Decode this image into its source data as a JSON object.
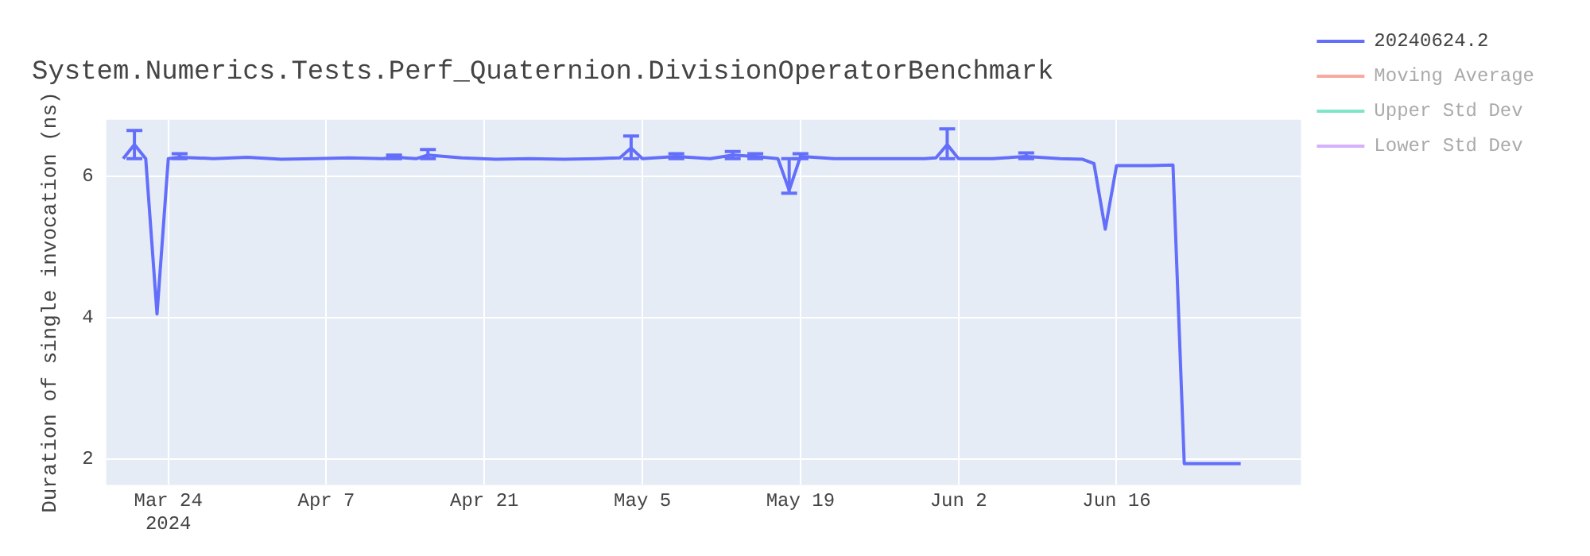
{
  "chart_data": {
    "type": "line",
    "title": "System.Numerics.Tests.Perf_Quaternion.DivisionOperatorBenchmark",
    "ylabel": "Duration of single invocation (ns)",
    "x": [
      "2024-03-20",
      "2024-03-21",
      "2024-03-22",
      "2024-03-23",
      "2024-03-24",
      "2024-03-25",
      "2024-03-28",
      "2024-03-31",
      "2024-04-03",
      "2024-04-06",
      "2024-04-09",
      "2024-04-12",
      "2024-04-13",
      "2024-04-15",
      "2024-04-16",
      "2024-04-19",
      "2024-04-22",
      "2024-04-25",
      "2024-04-28",
      "2024-05-01",
      "2024-05-03",
      "2024-05-04",
      "2024-05-05",
      "2024-05-08",
      "2024-05-11",
      "2024-05-13",
      "2024-05-15",
      "2024-05-17",
      "2024-05-18",
      "2024-05-19",
      "2024-05-22",
      "2024-05-26",
      "2024-05-30",
      "2024-05-31",
      "2024-06-01",
      "2024-06-02",
      "2024-06-05",
      "2024-06-08",
      "2024-06-11",
      "2024-06-13",
      "2024-06-14",
      "2024-06-15",
      "2024-06-16",
      "2024-06-19",
      "2024-06-21",
      "2024-06-22",
      "2024-06-24",
      "2024-06-27"
    ],
    "series": [
      {
        "name": "20240624.2",
        "color": "#636efa",
        "values": [
          6.25,
          6.45,
          6.25,
          4.05,
          6.25,
          6.27,
          6.25,
          6.27,
          6.24,
          6.25,
          6.26,
          6.25,
          6.27,
          6.25,
          6.3,
          6.26,
          6.24,
          6.25,
          6.24,
          6.25,
          6.26,
          6.4,
          6.25,
          6.28,
          6.25,
          6.3,
          6.28,
          6.25,
          5.8,
          6.28,
          6.25,
          6.25,
          6.25,
          6.26,
          6.45,
          6.25,
          6.25,
          6.28,
          6.25,
          6.24,
          6.18,
          5.25,
          6.15,
          6.15,
          6.16,
          1.93,
          1.93,
          1.93
        ],
        "errors": [
          null,
          [
            6.25,
            6.65
          ],
          null,
          null,
          null,
          [
            6.25,
            6.32
          ],
          null,
          null,
          null,
          null,
          null,
          null,
          [
            6.25,
            6.3
          ],
          null,
          [
            6.25,
            6.38
          ],
          null,
          null,
          null,
          null,
          null,
          null,
          [
            6.25,
            6.57
          ],
          null,
          [
            6.25,
            6.32
          ],
          null,
          [
            6.25,
            6.35
          ],
          [
            6.25,
            6.32
          ],
          null,
          [
            5.76,
            6.25
          ],
          [
            6.25,
            6.32
          ],
          null,
          null,
          null,
          null,
          [
            6.25,
            6.67
          ],
          null,
          null,
          [
            6.25,
            6.33
          ],
          null,
          null,
          null,
          null,
          null,
          null,
          null,
          null,
          null,
          null
        ]
      },
      {
        "name": "Moving Average",
        "color": "#ef553b",
        "values": [
          null,
          null,
          null,
          null,
          null,
          null,
          null,
          null,
          null,
          null,
          null,
          null,
          null,
          null,
          null,
          null,
          null,
          null,
          null,
          null,
          null,
          null,
          null,
          null,
          null,
          null,
          null,
          null,
          null,
          null,
          null,
          null,
          null,
          null,
          null,
          null,
          null,
          null,
          null,
          null,
          null,
          null,
          null,
          null,
          null,
          null,
          null,
          null
        ]
      },
      {
        "name": "Upper Std Dev",
        "color": "#00cc96",
        "values": [
          null,
          null,
          null,
          null,
          null,
          null,
          null,
          null,
          null,
          null,
          null,
          null,
          null,
          null,
          null,
          null,
          null,
          null,
          null,
          null,
          null,
          null,
          null,
          null,
          null,
          null,
          null,
          null,
          null,
          null,
          null,
          null,
          null,
          null,
          null,
          null,
          null,
          null,
          null,
          null,
          null,
          null,
          null,
          null,
          null,
          null,
          null,
          null
        ]
      },
      {
        "name": "Lower Std Dev",
        "color": "#ab63fa",
        "values": [
          null,
          null,
          null,
          null,
          null,
          null,
          null,
          null,
          null,
          null,
          null,
          null,
          null,
          null,
          null,
          null,
          null,
          null,
          null,
          null,
          null,
          null,
          null,
          null,
          null,
          null,
          null,
          null,
          null,
          null,
          null,
          null,
          null,
          null,
          null,
          null,
          null,
          null,
          null,
          null,
          null,
          null,
          null,
          null,
          null,
          null,
          null,
          null
        ]
      }
    ],
    "xlim": [
      "2024-03-18T12:00",
      "2024-07-02T08:00"
    ],
    "xticks": [
      {
        "value": "2024-03-24",
        "label": "Mar 24\n2024"
      },
      {
        "value": "2024-04-07",
        "label": "Apr 7"
      },
      {
        "value": "2024-04-21",
        "label": "Apr 21"
      },
      {
        "value": "2024-05-05",
        "label": "May 5"
      },
      {
        "value": "2024-05-19",
        "label": "May 19"
      },
      {
        "value": "2024-06-02",
        "label": "Jun 2"
      },
      {
        "value": "2024-06-16",
        "label": "Jun 16"
      }
    ],
    "ylim": [
      1.63,
      6.8
    ],
    "yticks": [
      2,
      4,
      6
    ],
    "grid": true,
    "legend": "top right",
    "marker": "none",
    "line_style": "solid"
  }
}
